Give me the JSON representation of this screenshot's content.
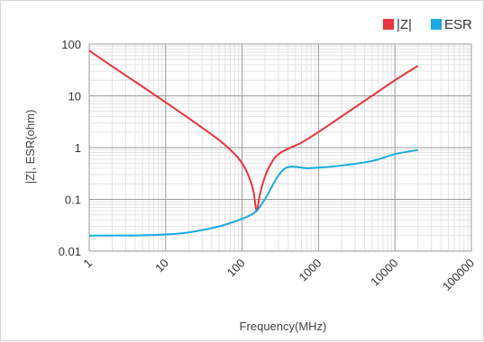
{
  "chart_data": {
    "type": "line",
    "xscale": "log",
    "yscale": "log",
    "xlim": [
      1,
      100000
    ],
    "ylim": [
      0.01,
      100
    ],
    "xlabel": "Frequency(MHz)",
    "ylabel": "|Z|, ESR(ohm)",
    "grid": true,
    "legend_position": "top-right",
    "x_ticks": [
      "1",
      "10",
      "100",
      "1000",
      "10000",
      "100000"
    ],
    "y_ticks": [
      "0.01",
      "0.1",
      "1",
      "10",
      "100"
    ],
    "series": [
      {
        "name": "|Z|",
        "color": "#e8343c",
        "x": [
          1,
          2,
          5,
          10,
          20,
          50,
          80,
          100,
          120,
          140,
          155,
          170,
          200,
          250,
          300,
          400,
          600,
          1000,
          2000,
          5000,
          10000,
          20000
        ],
        "y": [
          75,
          37,
          15,
          7.5,
          3.7,
          1.4,
          0.75,
          0.5,
          0.3,
          0.15,
          0.06,
          0.12,
          0.28,
          0.55,
          0.75,
          0.95,
          1.25,
          2,
          4,
          10,
          20,
          38
        ]
      },
      {
        "name": "ESR",
        "color": "#1aa9e3",
        "x": [
          1,
          2,
          5,
          10,
          20,
          50,
          100,
          130,
          155,
          180,
          220,
          280,
          350,
          450,
          700,
          1000,
          2000,
          5000,
          10000,
          20000
        ],
        "y": [
          0.02,
          0.02,
          0.0202,
          0.021,
          0.023,
          0.03,
          0.042,
          0.05,
          0.06,
          0.08,
          0.13,
          0.25,
          0.38,
          0.43,
          0.4,
          0.41,
          0.45,
          0.55,
          0.75,
          0.9
        ]
      }
    ]
  }
}
